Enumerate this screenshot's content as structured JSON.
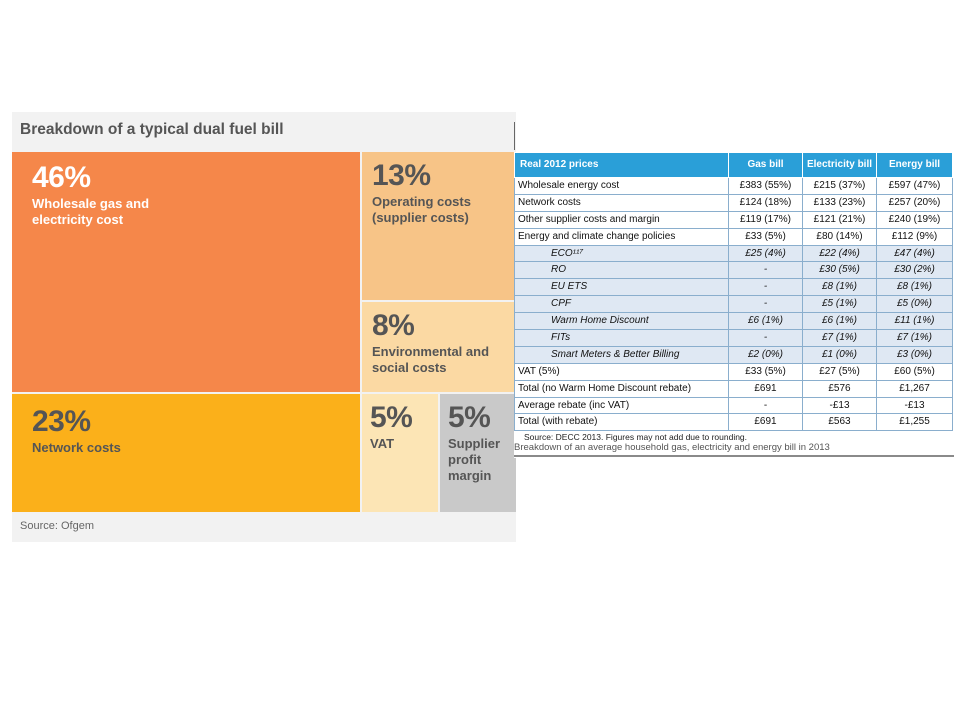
{
  "chart_data": [
    {
      "type": "treemap",
      "title": "Breakdown of a typical dual fuel bill",
      "source": "Source: Ofgem",
      "segments": [
        {
          "pct": "46%",
          "label": "Wholesale gas and\nelectricity cost",
          "value": 46,
          "color": "#f5874a",
          "text_color": "#ffffff"
        },
        {
          "pct": "13%",
          "label": "Operating costs\n(supplier costs)",
          "value": 13,
          "color": "#f7c487",
          "text_color": "#555555"
        },
        {
          "pct": "8%",
          "label": "Environmental and\nsocial costs",
          "value": 8,
          "color": "#fbd9a3",
          "text_color": "#555555"
        },
        {
          "pct": "23%",
          "label": "Network costs",
          "value": 23,
          "color": "#fbb01a",
          "text_color": "#555555"
        },
        {
          "pct": "5%",
          "label": "VAT",
          "value": 5,
          "color": "#fce5b5",
          "text_color": "#555555"
        },
        {
          "pct": "5%",
          "label": "Supplier\nprofit\nmargin",
          "value": 5,
          "color": "#c9c9c9",
          "text_color": "#555555"
        }
      ]
    },
    {
      "type": "table",
      "columns": [
        "Real 2012 prices",
        "Gas bill",
        "Electricity bill",
        "Energy bill"
      ],
      "rows": [
        {
          "label": "Wholesale energy cost",
          "gas": "£383 (55%)",
          "elec": "£215 (37%)",
          "energy": "£597 (47%)",
          "sub": false
        },
        {
          "label": "Network costs",
          "gas": "£124 (18%)",
          "elec": "£133 (23%)",
          "energy": "£257 (20%)",
          "sub": false
        },
        {
          "label": "Other supplier costs and margin",
          "gas": "£119 (17%)",
          "elec": "£121 (21%)",
          "energy": "£240 (19%)",
          "sub": false
        },
        {
          "label": "Energy and climate change policies",
          "gas": "£33 (5%)",
          "elec": "£80 (14%)",
          "energy": "£112 (9%)",
          "sub": false
        },
        {
          "label": "ECO¹¹⁷",
          "gas": "£25 (4%)",
          "elec": "£22 (4%)",
          "energy": "£47 (4%)",
          "sub": true
        },
        {
          "label": "RO",
          "gas": "-",
          "elec": "£30 (5%)",
          "energy": "£30 (2%)",
          "sub": true
        },
        {
          "label": "EU ETS",
          "gas": "-",
          "elec": "£8 (1%)",
          "energy": "£8 (1%)",
          "sub": true
        },
        {
          "label": "CPF",
          "gas": "-",
          "elec": "£5 (1%)",
          "energy": "£5 (0%)",
          "sub": true
        },
        {
          "label": "Warm Home Discount",
          "gas": "£6 (1%)",
          "elec": "£6 (1%)",
          "energy": "£11 (1%)",
          "sub": true
        },
        {
          "label": "FITs",
          "gas": "-",
          "elec": "£7 (1%)",
          "energy": "£7 (1%)",
          "sub": true
        },
        {
          "label": "Smart Meters & Better Billing",
          "gas": "£2 (0%)",
          "elec": "£1 (0%)",
          "energy": "£3 (0%)",
          "sub": true
        },
        {
          "label": "VAT (5%)",
          "gas": "£33 (5%)",
          "elec": "£27 (5%)",
          "energy": "£60 (5%)",
          "sub": false
        },
        {
          "label": "Total (no Warm Home Discount rebate)",
          "gas": "£691",
          "elec": "£576",
          "energy": "£1,267",
          "sub": false
        },
        {
          "label": "Average rebate (inc VAT)",
          "gas": "-",
          "elec": "-£13",
          "energy": "-£13",
          "sub": false
        },
        {
          "label": "Total (with rebate)",
          "gas": "£691",
          "elec": "£563",
          "energy": "£1,255",
          "sub": false
        }
      ],
      "source": "Source: DECC 2013. Figures may not add due to rounding.",
      "caption": "Breakdown of an average household gas, electricity and energy bill in 2013"
    }
  ]
}
